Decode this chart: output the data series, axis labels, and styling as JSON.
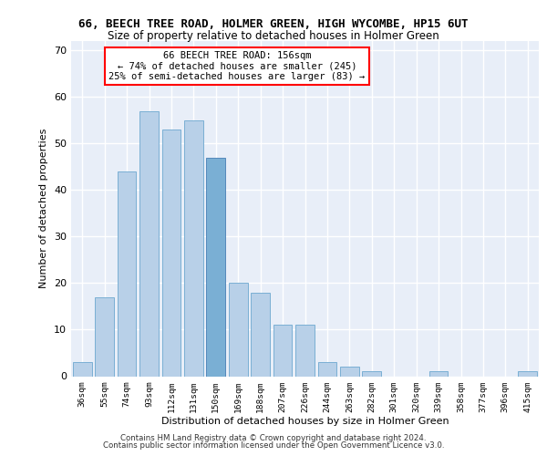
{
  "title": "66, BEECH TREE ROAD, HOLMER GREEN, HIGH WYCOMBE, HP15 6UT",
  "subtitle": "Size of property relative to detached houses in Holmer Green",
  "xlabel": "Distribution of detached houses by size in Holmer Green",
  "ylabel": "Number of detached properties",
  "categories": [
    "36sqm",
    "55sqm",
    "74sqm",
    "93sqm",
    "112sqm",
    "131sqm",
    "150sqm",
    "169sqm",
    "188sqm",
    "207sqm",
    "226sqm",
    "244sqm",
    "263sqm",
    "282sqm",
    "301sqm",
    "320sqm",
    "339sqm",
    "358sqm",
    "377sqm",
    "396sqm",
    "415sqm"
  ],
  "values": [
    3,
    17,
    44,
    57,
    53,
    55,
    47,
    20,
    18,
    11,
    11,
    3,
    2,
    1,
    0,
    0,
    1,
    0,
    0,
    0,
    1
  ],
  "bar_color": "#b8d0e8",
  "bar_edge_color": "#7aafd4",
  "highlight_index": 6,
  "highlight_color": "#7aafd4",
  "highlight_edge_color": "#5588bb",
  "annotation_text": "66 BEECH TREE ROAD: 156sqm\n← 74% of detached houses are smaller (245)\n25% of semi-detached houses are larger (83) →",
  "annotation_box_color": "white",
  "annotation_box_edge": "red",
  "ylim": [
    0,
    72
  ],
  "yticks": [
    0,
    10,
    20,
    30,
    40,
    50,
    60,
    70
  ],
  "background_color": "#e8eef8",
  "grid_color": "white",
  "footer_line1": "Contains HM Land Registry data © Crown copyright and database right 2024.",
  "footer_line2": "Contains public sector information licensed under the Open Government Licence v3.0."
}
